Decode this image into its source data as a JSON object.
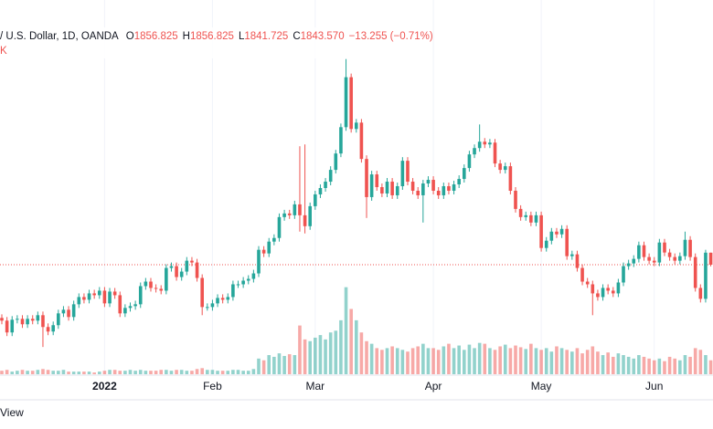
{
  "chart_data": {
    "type": "candlestick",
    "title": "/ U.S. Dollar, 1D, OANDA",
    "ohlc_legend": [
      {
        "label": "O",
        "value": "1856.825"
      },
      {
        "label": "H",
        "value": "1856.825"
      },
      {
        "label": "L",
        "value": "1841.725"
      },
      {
        "label": "C",
        "value": "1843.570"
      }
    ],
    "change": "−13.255 (−0.71%)",
    "indicator_label": "K",
    "footer": "View",
    "up_color": "#26a69a",
    "down_color": "#ef5350",
    "ylim": [
      1723,
      2135
    ],
    "volume_ylim": [
      0,
      430
    ],
    "categories": [
      null,
      null,
      null,
      null,
      null,
      null,
      null,
      null,
      null,
      null,
      null,
      null,
      null,
      null,
      null,
      null,
      null,
      null,
      null,
      null,
      "2022",
      null,
      null,
      null,
      null,
      null,
      null,
      null,
      null,
      null,
      null,
      null,
      null,
      null,
      null,
      null,
      null,
      null,
      null,
      null,
      null,
      "Feb",
      null,
      null,
      null,
      null,
      null,
      null,
      null,
      null,
      null,
      null,
      null,
      null,
      null,
      null,
      null,
      null,
      null,
      null,
      null,
      "Mar",
      null,
      null,
      null,
      null,
      null,
      null,
      null,
      null,
      null,
      null,
      null,
      null,
      null,
      null,
      null,
      null,
      null,
      null,
      null,
      null,
      null,
      null,
      "Apr",
      null,
      null,
      null,
      null,
      null,
      null,
      null,
      null,
      null,
      null,
      null,
      null,
      null,
      null,
      null,
      null,
      null,
      null,
      null,
      null,
      "May",
      null,
      null,
      null,
      null,
      null,
      null,
      null,
      null,
      null,
      null,
      null,
      null,
      null,
      null,
      null,
      null,
      null,
      null,
      null,
      null,
      null,
      "Jun",
      null,
      null,
      null,
      null,
      null,
      null,
      null,
      null,
      null,
      null,
      null
    ],
    "open": [
      1785,
      1782,
      1769,
      1783,
      1784,
      1778,
      1784,
      1782,
      1788,
      1775,
      1770,
      1777,
      1790,
      1794,
      1786,
      1800,
      1808,
      1805,
      1812,
      1810,
      1815,
      1801,
      1814,
      1810,
      1790,
      1796,
      1798,
      1800,
      1820,
      1825,
      1818,
      1817,
      1815,
      1840,
      1842,
      1830,
      1836,
      1848,
      1846,
      1829,
      1797,
      1797,
      1801,
      1807,
      1805,
      1808,
      1822,
      1822,
      1826,
      1828,
      1834,
      1860,
      1856,
      1869,
      1873,
      1896,
      1900,
      1898,
      1910,
      1898,
      1886,
      1908,
      1921,
      1928,
      1935,
      1948,
      1966,
      1995,
      2050,
      1993,
      2000,
      1960,
      1918,
      1943,
      1929,
      1922,
      1935,
      1920,
      1930,
      1958,
      1935,
      1925,
      1920,
      1933,
      1937,
      1925,
      1920,
      1930,
      1925,
      1932,
      1938,
      1950,
      1965,
      1972,
      1979,
      1976,
      1978,
      1955,
      1948,
      1952,
      1925,
      1905,
      1896,
      1898,
      1890,
      1898,
      1862,
      1870,
      1880,
      1877,
      1883,
      1853,
      1855,
      1840,
      1825,
      1822,
      1812,
      1808,
      1818,
      1815,
      1812,
      1824,
      1842,
      1845,
      1850,
      1865,
      1852,
      1848,
      1846,
      1868,
      1857,
      1852,
      1848,
      1853,
      1871,
      1852,
      1818,
      1806,
      1856.825
    ],
    "high": [
      1789,
      1786,
      1787,
      1788,
      1788,
      1788,
      1788,
      1792,
      1792,
      1779,
      1781,
      1794,
      1798,
      1798,
      1804,
      1812,
      1812,
      1816,
      1816,
      1819,
      1819,
      1818,
      1818,
      1814,
      1800,
      1802,
      1804,
      1824,
      1829,
      1829,
      1822,
      1821,
      1844,
      1846,
      1846,
      1840,
      1852,
      1852,
      1850,
      1833,
      1801,
      1805,
      1811,
      1811,
      1812,
      1826,
      1826,
      1830,
      1832,
      1838,
      1864,
      1864,
      1873,
      1877,
      1900,
      1904,
      1904,
      1914,
      1974,
      1976,
      1912,
      1925,
      1932,
      1939,
      1952,
      1970,
      1999,
      2070,
      2054,
      2004,
      2004,
      1964,
      1947,
      1947,
      1933,
      1939,
      1939,
      1934,
      1962,
      1962,
      1939,
      1929,
      1937,
      1941,
      1941,
      1929,
      1934,
      1934,
      1936,
      1942,
      1954,
      1969,
      1976,
      1998,
      1983,
      1982,
      1982,
      1959,
      1956,
      1956,
      1929,
      1909,
      1902,
      1902,
      1902,
      1902,
      1874,
      1884,
      1884,
      1887,
      1887,
      1859,
      1859,
      1844,
      1829,
      1826,
      1816,
      1822,
      1822,
      1819,
      1828,
      1846,
      1849,
      1854,
      1869,
      1869,
      1856,
      1852,
      1872,
      1872,
      1861,
      1856,
      1857,
      1880,
      1875,
      1856,
      1822,
      1860,
      1856.825
    ],
    "low": [
      1778,
      1765,
      1765,
      1779,
      1774,
      1774,
      1778,
      1778,
      1753,
      1766,
      1766,
      1773,
      1786,
      1782,
      1782,
      1796,
      1801,
      1801,
      1806,
      1806,
      1797,
      1797,
      1806,
      1786,
      1786,
      1792,
      1794,
      1796,
      1816,
      1814,
      1813,
      1811,
      1811,
      1836,
      1826,
      1826,
      1832,
      1842,
      1825,
      1788,
      1793,
      1793,
      1797,
      1801,
      1801,
      1804,
      1818,
      1818,
      1822,
      1824,
      1830,
      1852,
      1852,
      1865,
      1869,
      1892,
      1894,
      1894,
      1880,
      1878,
      1882,
      1904,
      1917,
      1924,
      1931,
      1944,
      1962,
      1991,
      1989,
      1989,
      1956,
      1895,
      1914,
      1925,
      1918,
      1918,
      1916,
      1916,
      1926,
      1931,
      1921,
      1916,
      1890,
      1929,
      1921,
      1916,
      1916,
      1921,
      1921,
      1928,
      1934,
      1946,
      1961,
      1968,
      1972,
      1972,
      1951,
      1944,
      1944,
      1921,
      1901,
      1892,
      1892,
      1886,
      1886,
      1858,
      1858,
      1866,
      1873,
      1873,
      1849,
      1849,
      1836,
      1821,
      1818,
      1788,
      1804,
      1804,
      1811,
      1808,
      1808,
      1820,
      1838,
      1841,
      1846,
      1848,
      1844,
      1842,
      1842,
      1853,
      1848,
      1844,
      1844,
      1849,
      1848,
      1814,
      1802,
      1802,
      1841.725
    ],
    "close": [
      1782,
      1769,
      1783,
      1784,
      1778,
      1784,
      1782,
      1788,
      1775,
      1770,
      1777,
      1790,
      1794,
      1786,
      1800,
      1808,
      1805,
      1812,
      1810,
      1815,
      1801,
      1814,
      1810,
      1790,
      1796,
      1798,
      1800,
      1820,
      1825,
      1818,
      1817,
      1815,
      1840,
      1842,
      1830,
      1836,
      1848,
      1846,
      1829,
      1797,
      1797,
      1801,
      1807,
      1805,
      1808,
      1822,
      1822,
      1826,
      1828,
      1834,
      1860,
      1856,
      1869,
      1873,
      1896,
      1900,
      1898,
      1910,
      1898,
      1886,
      1908,
      1921,
      1928,
      1935,
      1948,
      1966,
      1995,
      2050,
      1993,
      2000,
      1960,
      1918,
      1943,
      1929,
      1922,
      1935,
      1920,
      1930,
      1958,
      1935,
      1925,
      1920,
      1933,
      1937,
      1925,
      1920,
      1930,
      1925,
      1932,
      1938,
      1950,
      1965,
      1972,
      1979,
      1976,
      1978,
      1955,
      1948,
      1952,
      1925,
      1905,
      1896,
      1898,
      1890,
      1898,
      1862,
      1870,
      1880,
      1877,
      1883,
      1853,
      1855,
      1840,
      1825,
      1822,
      1812,
      1808,
      1818,
      1815,
      1812,
      1824,
      1842,
      1845,
      1850,
      1865,
      1852,
      1848,
      1846,
      1868,
      1857,
      1852,
      1848,
      1853,
      1871,
      1852,
      1818,
      1806,
      1856.825,
      1843.57
    ],
    "volume": [
      4,
      5,
      3,
      4,
      5,
      4,
      4,
      5,
      6,
      5,
      4,
      4,
      5,
      3,
      3,
      3,
      3,
      3,
      2,
      3,
      4,
      5,
      5,
      4,
      4,
      5,
      4,
      5,
      4,
      4,
      4,
      5,
      5,
      4,
      5,
      5,
      4,
      4,
      6,
      7,
      5,
      5,
      4,
      4,
      4,
      5,
      5,
      4,
      4,
      6,
      18,
      16,
      22,
      20,
      24,
      21,
      23,
      22,
      56,
      40,
      38,
      42,
      45,
      40,
      48,
      50,
      62,
      100,
      75,
      62,
      48,
      38,
      35,
      30,
      28,
      30,
      32,
      30,
      28,
      26,
      30,
      32,
      35,
      30,
      30,
      28,
      32,
      35,
      30,
      33,
      28,
      34,
      30,
      36,
      35,
      30,
      28,
      32,
      34,
      30,
      33,
      31,
      29,
      35,
      30,
      28,
      30,
      26,
      32,
      30,
      28,
      26,
      30,
      24,
      28,
      32,
      26,
      22,
      25,
      20,
      24,
      22,
      20,
      18,
      22,
      20,
      18,
      16,
      18,
      15,
      20,
      18,
      16,
      22,
      20,
      30,
      28,
      22,
      16
    ]
  }
}
